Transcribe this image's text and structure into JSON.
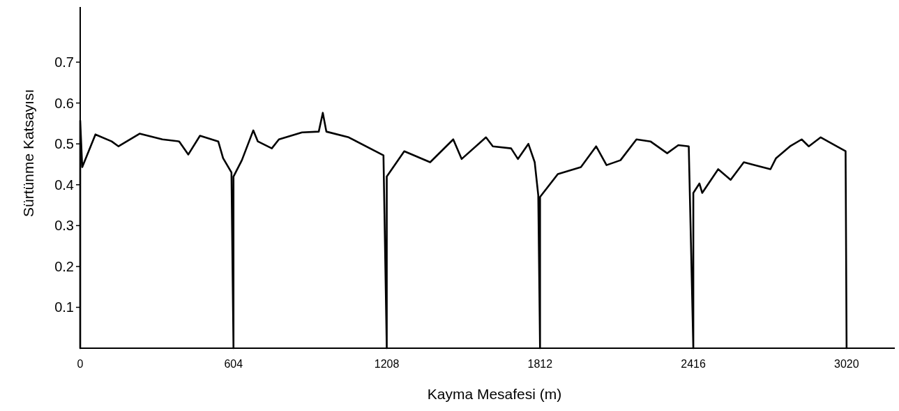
{
  "chart_data": {
    "type": "line",
    "xlabel": "Kayma Mesafesi (m)",
    "ylabel": "Sürtünme Katsayısı",
    "xlim": [
      0,
      3210
    ],
    "ylim": [
      0,
      0.835
    ],
    "xticks": [
      0,
      604,
      1208,
      1812,
      2416,
      3020
    ],
    "yticks": [
      0.1,
      0.2,
      0.3,
      0.4,
      0.5,
      0.6,
      0.7
    ],
    "grid": false,
    "marker": "none",
    "line_style": "solid",
    "series": [
      {
        "color": "#000000",
        "x": [
          0,
          0,
          8,
          60,
          124,
          151,
          234,
          324,
          390,
          426,
          472,
          544,
          563,
          596,
          604,
          604,
          637,
          682,
          700,
          755,
          783,
          874,
          940,
          956,
          970,
          1058,
          1195,
          1208,
          1208,
          1277,
          1379,
          1470,
          1503,
          1599,
          1626,
          1698,
          1725,
          1766,
          1791,
          1805,
          1812,
          1812,
          1882,
          1973,
          2033,
          2074,
          2129,
          2192,
          2247,
          2313,
          2357,
          2398,
          2416,
          2416,
          2440,
          2451,
          2514,
          2563,
          2615,
          2659,
          2720,
          2742,
          2797,
          2843,
          2871,
          2918,
          2981,
          3016,
          3020
        ],
        "values": [
          0,
          0.557,
          0.443,
          0.523,
          0.506,
          0.494,
          0.525,
          0.511,
          0.506,
          0.474,
          0.52,
          0.506,
          0.465,
          0.43,
          0,
          0.42,
          0.46,
          0.533,
          0.506,
          0.489,
          0.511,
          0.528,
          0.53,
          0.576,
          0.53,
          0.516,
          0.472,
          0,
          0.42,
          0.482,
          0.455,
          0.511,
          0.463,
          0.516,
          0.494,
          0.489,
          0.463,
          0.5,
          0.455,
          0.374,
          0,
          0.37,
          0.426,
          0.443,
          0.494,
          0.448,
          0.46,
          0.511,
          0.506,
          0.477,
          0.497,
          0.494,
          0,
          0.38,
          0.403,
          0.38,
          0.438,
          0.412,
          0.455,
          0.448,
          0.438,
          0.465,
          0.494,
          0.511,
          0.494,
          0.516,
          0.494,
          0.482,
          0
        ]
      }
    ]
  }
}
